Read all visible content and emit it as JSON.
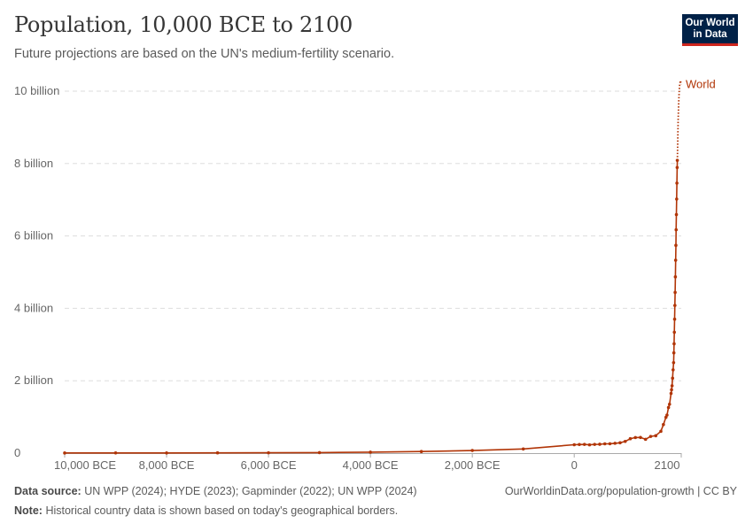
{
  "title": "Population, 10,000 BCE to 2100",
  "subtitle": "Future projections are based on the UN's medium-fertility scenario.",
  "logo": "Our World in Data",
  "footer": {
    "source_label": "Data source:",
    "source": "UN WPP (2024); HYDE (2023); Gapminder (2022); UN WPP (2024)",
    "url": "OurWorldinData.org/population-growth | CC BY",
    "note_label": "Note:",
    "note": "Historical country data is shown based on today's geographical borders."
  },
  "chart_data": {
    "type": "line",
    "title": "Population, 10,000 BCE to 2100",
    "xlim": [
      -10000,
      2100
    ],
    "ylim": [
      0,
      10000000000
    ],
    "grid": true,
    "legend_placement": "right-end-label",
    "color": "#b13507",
    "x_ticks": [
      {
        "value": -10000,
        "label": "10,000 BCE"
      },
      {
        "value": -8000,
        "label": "8,000 BCE"
      },
      {
        "value": -6000,
        "label": "6,000 BCE"
      },
      {
        "value": -4000,
        "label": "4,000 BCE"
      },
      {
        "value": -2000,
        "label": "2,000 BCE"
      },
      {
        "value": 0,
        "label": "0"
      },
      {
        "value": 2100,
        "label": "2100"
      }
    ],
    "y_ticks": [
      {
        "value": 0,
        "label": "0"
      },
      {
        "value": 2000000000,
        "label": "2 billion"
      },
      {
        "value": 4000000000,
        "label": "4 billion"
      },
      {
        "value": 6000000000,
        "label": "6 billion"
      },
      {
        "value": 8000000000,
        "label": "8 billion"
      },
      {
        "value": 10000000000,
        "label": "10 billion"
      }
    ],
    "series": [
      {
        "name": "World",
        "historical": [
          [
            -10000,
            4400000.0
          ],
          [
            -9000,
            5100000.0
          ],
          [
            -8000,
            5800000.0
          ],
          [
            -7000,
            7200000.0
          ],
          [
            -6000,
            9400000.0
          ],
          [
            -5000,
            14000000.0
          ],
          [
            -4000,
            26000000.0
          ],
          [
            -3000,
            44000000.0
          ],
          [
            -2000,
            72000000.0
          ],
          [
            -1000,
            115000000.0
          ],
          [
            0,
            232000000.0
          ],
          [
            100,
            237000000.0
          ],
          [
            200,
            240000000.0
          ],
          [
            300,
            229000000.0
          ],
          [
            400,
            240000000.0
          ],
          [
            500,
            245000000.0
          ],
          [
            600,
            257000000.0
          ],
          [
            700,
            259000000.0
          ],
          [
            800,
            272000000.0
          ],
          [
            900,
            286000000.0
          ],
          [
            1000,
            323000000.0
          ],
          [
            1100,
            398000000.0
          ],
          [
            1200,
            431000000.0
          ],
          [
            1300,
            433000000.0
          ],
          [
            1400,
            382000000.0
          ],
          [
            1500,
            461000000.0
          ],
          [
            1600,
            481000000.0
          ],
          [
            1700,
            603000000.0
          ],
          [
            1750,
            790000000.0
          ],
          [
            1800,
            990000000.0
          ],
          [
            1820,
            1050000000.0
          ],
          [
            1850,
            1260000000.0
          ],
          [
            1870,
            1350000000.0
          ],
          [
            1900,
            1650000000.0
          ],
          [
            1910,
            1750000000.0
          ],
          [
            1920,
            1860000000.0
          ],
          [
            1930,
            2070000000.0
          ],
          [
            1940,
            2300000000.0
          ],
          [
            1950,
            2500000000.0
          ],
          [
            1955,
            2770000000.0
          ],
          [
            1960,
            3020000000.0
          ],
          [
            1965,
            3340000000.0
          ],
          [
            1970,
            3700000000.0
          ],
          [
            1975,
            4080000000.0
          ],
          [
            1980,
            4440000000.0
          ],
          [
            1985,
            4870000000.0
          ],
          [
            1990,
            5330000000.0
          ],
          [
            1995,
            5740000000.0
          ],
          [
            2000,
            6170000000.0
          ],
          [
            2005,
            6590000000.0
          ],
          [
            2010,
            7020000000.0
          ],
          [
            2015,
            7460000000.0
          ],
          [
            2020,
            7890000000.0
          ],
          [
            2023,
            8090000000.0
          ]
        ],
        "projection": [
          [
            2023,
            8090000000.0
          ],
          [
            2030,
            8550000000.0
          ],
          [
            2040,
            9190000000.0
          ],
          [
            2050,
            9660000000.0
          ],
          [
            2060,
            10000000000.0
          ],
          [
            2070,
            10200000000.0
          ],
          [
            2084,
            10290000000.0
          ],
          [
            2100,
            10180000000.0
          ]
        ]
      }
    ]
  }
}
